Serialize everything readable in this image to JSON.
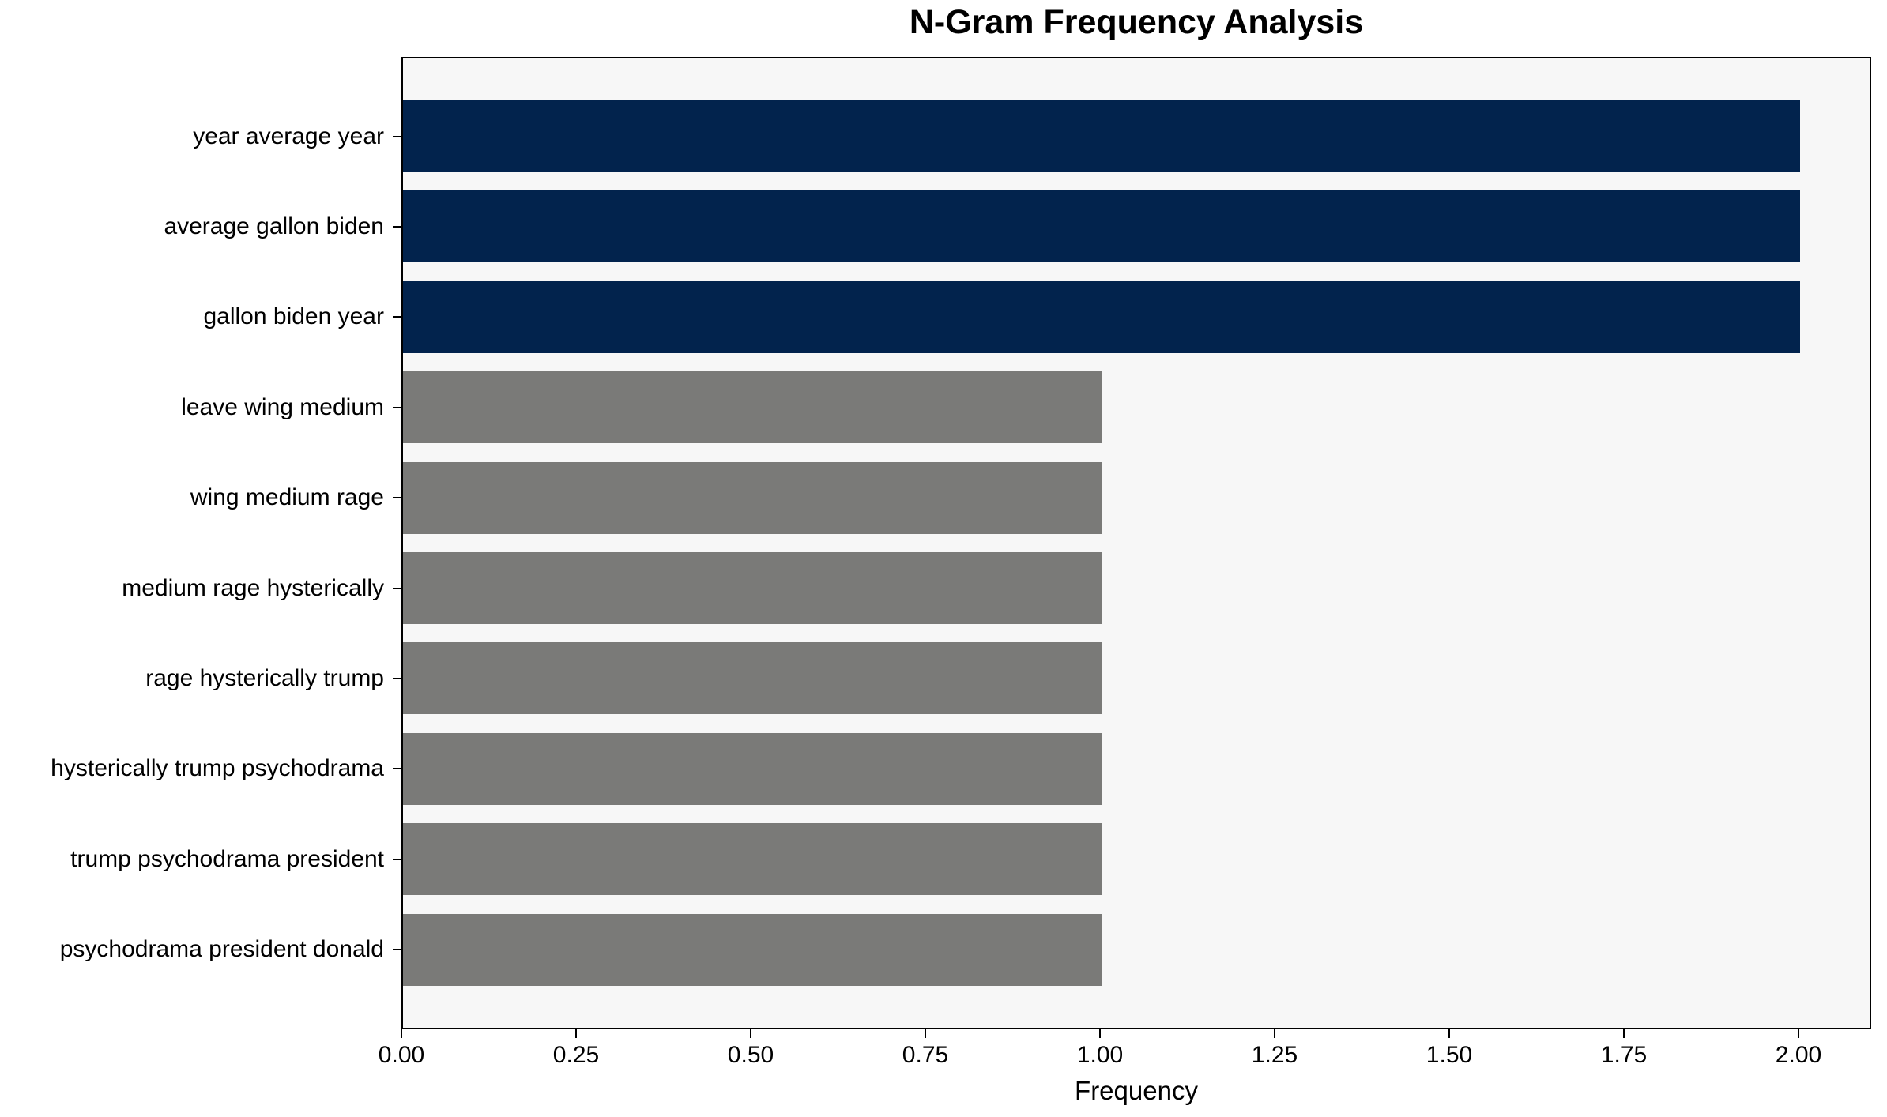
{
  "chart_data": {
    "type": "bar",
    "orientation": "horizontal",
    "title": "N-Gram Frequency Analysis",
    "xlabel": "Frequency",
    "ylabel": "",
    "categories": [
      "year average year",
      "average gallon biden",
      "gallon biden year",
      "leave wing medium",
      "wing medium rage",
      "medium rage hysterically",
      "rage hysterically trump",
      "hysterically trump psychodrama",
      "trump psychodrama president",
      "psychodrama president donald"
    ],
    "values": [
      2,
      2,
      2,
      1,
      1,
      1,
      1,
      1,
      1,
      1
    ],
    "bar_colors": [
      "#02234d",
      "#02234d",
      "#02234d",
      "#7a7a78",
      "#7a7a78",
      "#7a7a78",
      "#7a7a78",
      "#7a7a78",
      "#7a7a78",
      "#7a7a78"
    ],
    "xlim": [
      0,
      2.1
    ],
    "x_tick_labels": [
      "0.00",
      "0.25",
      "0.50",
      "0.75",
      "1.00",
      "1.25",
      "1.50",
      "1.75",
      "2.00"
    ],
    "x_tick_values": [
      0,
      0.25,
      0.5,
      0.75,
      1.0,
      1.25,
      1.5,
      1.75,
      2.0
    ],
    "grid": false,
    "legend_position": "none",
    "colors": {
      "highlight_bar": "#02234d",
      "default_bar": "#7a7a78",
      "plot_background": "#f7f7f7",
      "figure_background": "#ffffff",
      "spine": "#000000",
      "text": "#000000"
    }
  }
}
